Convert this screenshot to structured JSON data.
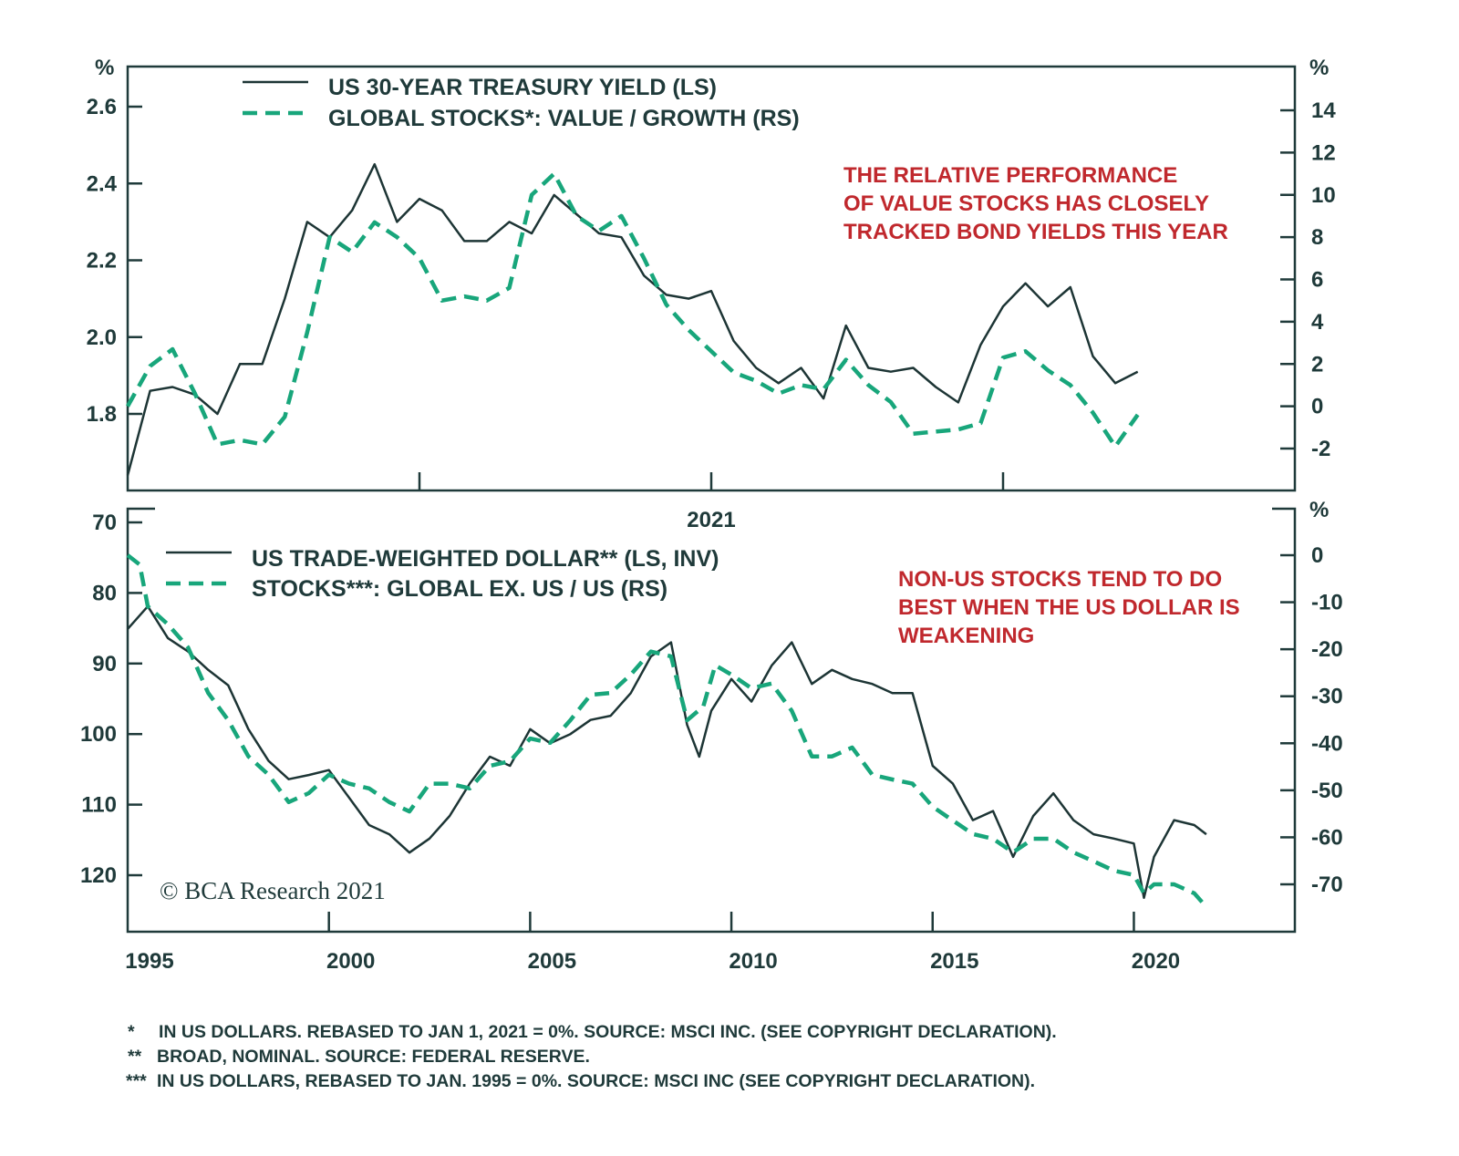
{
  "colors": {
    "axis": "#1f3a3a",
    "line_dark": "#1d3535",
    "line_green": "#18a67b",
    "annotation": "#c0282d"
  },
  "chart_data": [
    {
      "type": "line",
      "panel": "top",
      "left_unit": "%",
      "right_unit": "%",
      "x_unit": "2021 month (0 = Jan 1)",
      "xlim": [
        0,
        12
      ],
      "x_tick_label": "2021",
      "x_ticks": [
        3,
        6,
        9
      ],
      "left_ylim": [
        1.6,
        2.7
      ],
      "left_ticks": [
        "2.6",
        "2.4",
        "2.2",
        "2.0",
        "1.8"
      ],
      "right_ylim": [
        -4,
        15.5
      ],
      "right_ticks": [
        "14",
        "12",
        "10",
        "8",
        "6",
        "4",
        "2",
        "0",
        "-2"
      ],
      "legend": [
        "US 30-YEAR TREASURY YIELD (LS)",
        "GLOBAL STOCKS*: VALUE / GROWTH (RS)"
      ],
      "annotation": [
        "THE RELATIVE PERFORMANCE",
        "OF VALUE STOCKS HAS CLOSELY",
        "TRACKED BOND YIELDS THIS YEAR"
      ],
      "series": [
        {
          "name": "US 30-YEAR TREASURY YIELD (LS)",
          "axis": "left",
          "style": "solid",
          "x_step_weeks": 1,
          "values": [
            1.64,
            1.86,
            1.87,
            1.85,
            1.8,
            1.93,
            1.93,
            2.1,
            2.3,
            2.26,
            2.33,
            2.45,
            2.3,
            2.36,
            2.33,
            2.25,
            2.25,
            2.3,
            2.27,
            2.37,
            2.32,
            2.27,
            2.26,
            2.16,
            2.11,
            2.1,
            2.12,
            1.99,
            1.92,
            1.88,
            1.92,
            1.84,
            2.03,
            1.92,
            1.91,
            1.92,
            1.87,
            1.83,
            1.98,
            2.08,
            2.14,
            2.08,
            2.13,
            1.95,
            1.88,
            1.91
          ]
        },
        {
          "name": "GLOBAL STOCKS*: VALUE / GROWTH (RS)",
          "axis": "right",
          "style": "dashed",
          "x_step_weeks": 1,
          "values": [
            0.0,
            1.9,
            2.7,
            0.6,
            -1.8,
            -1.6,
            -1.8,
            -0.5,
            3.5,
            8.0,
            7.3,
            8.7,
            8.0,
            7.0,
            5.0,
            5.2,
            5.0,
            5.6,
            10.0,
            11.0,
            9.0,
            8.3,
            9.0,
            7.0,
            4.8,
            3.6,
            2.6,
            1.6,
            1.2,
            0.6,
            1.0,
            0.8,
            2.2,
            1.0,
            0.2,
            -1.3,
            -1.2,
            -1.1,
            -0.8,
            2.3,
            2.6,
            1.7,
            1.0,
            -0.3,
            -1.9,
            -0.4
          ]
        }
      ]
    },
    {
      "type": "line",
      "panel": "bottom",
      "right_unit": "%",
      "xlim": [
        1995,
        2024
      ],
      "x_ticks": [
        "1995",
        "2000",
        "2005",
        "2010",
        "2015",
        "2020"
      ],
      "left_ylim": [
        68,
        128
      ],
      "left_inverted": true,
      "left_ticks": [
        "70",
        "80",
        "90",
        "100",
        "110",
        "120"
      ],
      "right_ylim": [
        -80,
        3
      ],
      "right_ticks": [
        "0",
        "-10",
        "-20",
        "-30",
        "-40",
        "-50",
        "-60",
        "-70"
      ],
      "legend": [
        "US TRADE-WEIGHTED DOLLAR** (LS, INV)",
        "STOCKS***: GLOBAL EX. US / US (RS)"
      ],
      "annotation": [
        "NON-US STOCKS TEND TO DO",
        "BEST WHEN THE US DOLLAR IS",
        "WEAKENING"
      ],
      "series": [
        {
          "name": "US TRADE-WEIGHTED DOLLAR** (LS, INV)",
          "axis": "left",
          "style": "solid",
          "x": [
            1995.0,
            1995.5,
            1996.0,
            1996.5,
            1997.0,
            1997.5,
            1998.0,
            1998.5,
            1999.0,
            1999.5,
            2000.0,
            2000.5,
            2001.0,
            2001.5,
            2002.0,
            2002.5,
            2003.0,
            2003.5,
            2004.0,
            2004.5,
            2005.0,
            2005.5,
            2006.0,
            2006.5,
            2007.0,
            2007.5,
            2008.0,
            2008.5,
            2008.9,
            2009.2,
            2009.5,
            2010.0,
            2010.5,
            2011.0,
            2011.5,
            2012.0,
            2012.5,
            2013.0,
            2013.5,
            2014.0,
            2014.5,
            2015.0,
            2015.5,
            2016.0,
            2016.5,
            2017.0,
            2017.5,
            2018.0,
            2018.5,
            2019.0,
            2019.5,
            2020.0,
            2020.25,
            2020.5,
            2021.0,
            2021.5,
            2021.8
          ],
          "values": [
            85.1,
            81.9,
            86.4,
            88.3,
            90.9,
            93.1,
            99.3,
            103.8,
            106.4,
            105.8,
            105.1,
            109.0,
            112.9,
            114.2,
            116.8,
            114.8,
            111.6,
            107.0,
            103.2,
            104.5,
            99.3,
            101.3,
            100.0,
            98.0,
            97.4,
            94.2,
            89.0,
            87.0,
            98.7,
            103.2,
            96.7,
            92.2,
            95.4,
            90.3,
            87.0,
            92.9,
            90.9,
            92.2,
            92.9,
            94.2,
            94.2,
            104.5,
            107.0,
            112.2,
            110.9,
            117.4,
            111.6,
            108.4,
            112.2,
            114.2,
            114.8,
            115.5,
            123.2,
            117.4,
            112.2,
            112.9,
            114.2
          ]
        },
        {
          "name": "STOCKS***: GLOBAL EX. US / US (RS)",
          "axis": "right",
          "style": "dashed",
          "x": [
            1995.0,
            1995.3,
            1995.5,
            1996.0,
            1996.5,
            1997.0,
            1997.5,
            1998.0,
            1998.5,
            1999.0,
            1999.5,
            2000.0,
            2000.5,
            2001.0,
            2001.5,
            2002.0,
            2002.5,
            2003.0,
            2003.5,
            2004.0,
            2004.5,
            2005.0,
            2005.5,
            2006.0,
            2006.5,
            2007.0,
            2007.5,
            2008.0,
            2008.5,
            2008.9,
            2009.3,
            2009.6,
            2010.0,
            2010.5,
            2011.0,
            2011.5,
            2012.0,
            2012.5,
            2013.0,
            2013.5,
            2014.0,
            2014.5,
            2015.0,
            2015.5,
            2016.0,
            2016.5,
            2017.0,
            2017.5,
            2018.0,
            2018.5,
            2019.0,
            2019.5,
            2020.0,
            2020.25,
            2020.5,
            2021.0,
            2021.5,
            2021.8
          ],
          "values": [
            0,
            -2,
            -10.9,
            -14.7,
            -19.6,
            -29.3,
            -35.1,
            -42.8,
            -46.7,
            -52.5,
            -50.6,
            -46.7,
            -48.6,
            -49.6,
            -52.5,
            -54.5,
            -48.6,
            -48.6,
            -49.6,
            -44.8,
            -43.8,
            -39.0,
            -39.9,
            -35.1,
            -29.7,
            -29.3,
            -25.4,
            -20.5,
            -21.5,
            -35.1,
            -32.2,
            -23.4,
            -25.4,
            -28.3,
            -27.3,
            -33.1,
            -42.8,
            -42.8,
            -40.9,
            -46.7,
            -47.7,
            -48.6,
            -53.5,
            -56.4,
            -59.3,
            -60.3,
            -63.2,
            -60.3,
            -60.3,
            -63.2,
            -65.1,
            -67.1,
            -68.0,
            -71.9,
            -70.0,
            -70.0,
            -71.9,
            -74.8
          ]
        }
      ]
    }
  ],
  "logo": "© BCA Research 2021",
  "footnotes": [
    {
      "marker": "*",
      "text": "IN US DOLLARS. REBASED TO JAN 1, 2021 = 0%. SOURCE: MSCI INC. (SEE COPYRIGHT DECLARATION)."
    },
    {
      "marker": "**",
      "text": "BROAD, NOMINAL. SOURCE: FEDERAL RESERVE."
    },
    {
      "marker": "***",
      "text": "IN US DOLLARS, REBASED TO JAN. 1995 = 0%. SOURCE: MSCI INC (SEE COPYRIGHT DECLARATION)."
    }
  ]
}
